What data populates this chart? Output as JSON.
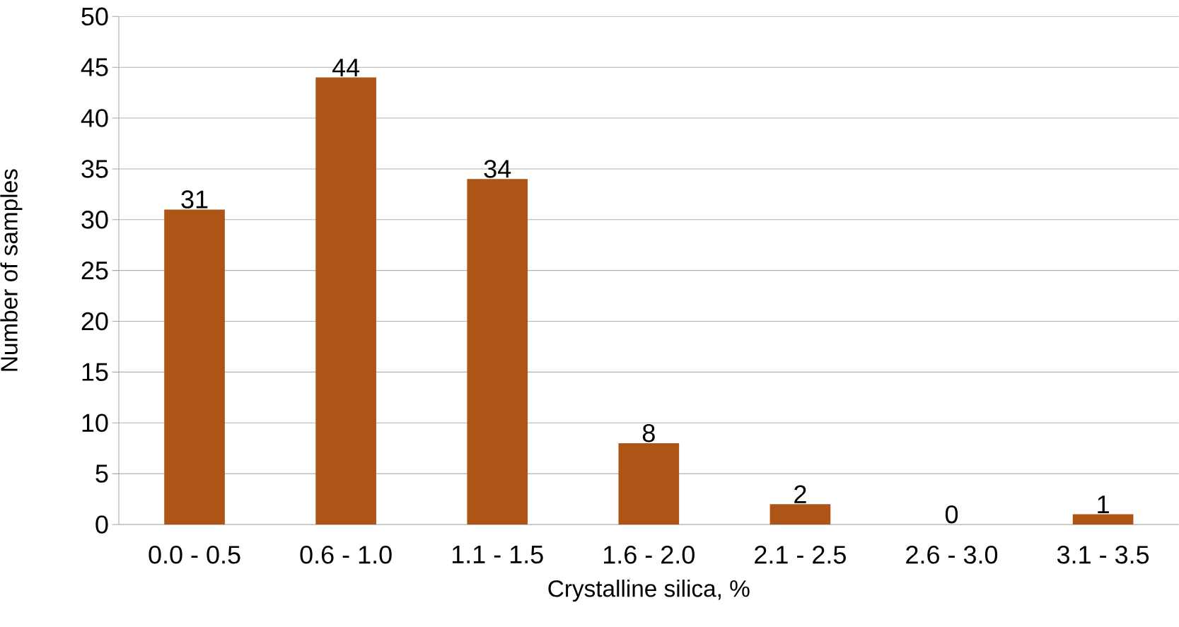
{
  "chart_data": {
    "type": "bar",
    "xlabel": "Crystalline silica, %",
    "ylabel": "Number of samples",
    "categories": [
      "0.0 - 0.5",
      "0.6 - 1.0",
      "1.1 - 1.5",
      "1.6 - 2.0",
      "2.1 - 2.5",
      "2.6 - 3.0",
      "3.1 - 3.5"
    ],
    "values": [
      31,
      44,
      34,
      8,
      2,
      0,
      1
    ],
    "color": "#ae5417",
    "ylim": [
      0,
      50
    ],
    "yticks": [
      0,
      5,
      10,
      15,
      20,
      25,
      30,
      35,
      40,
      45,
      50
    ],
    "grid": "y",
    "data_labels": true
  }
}
